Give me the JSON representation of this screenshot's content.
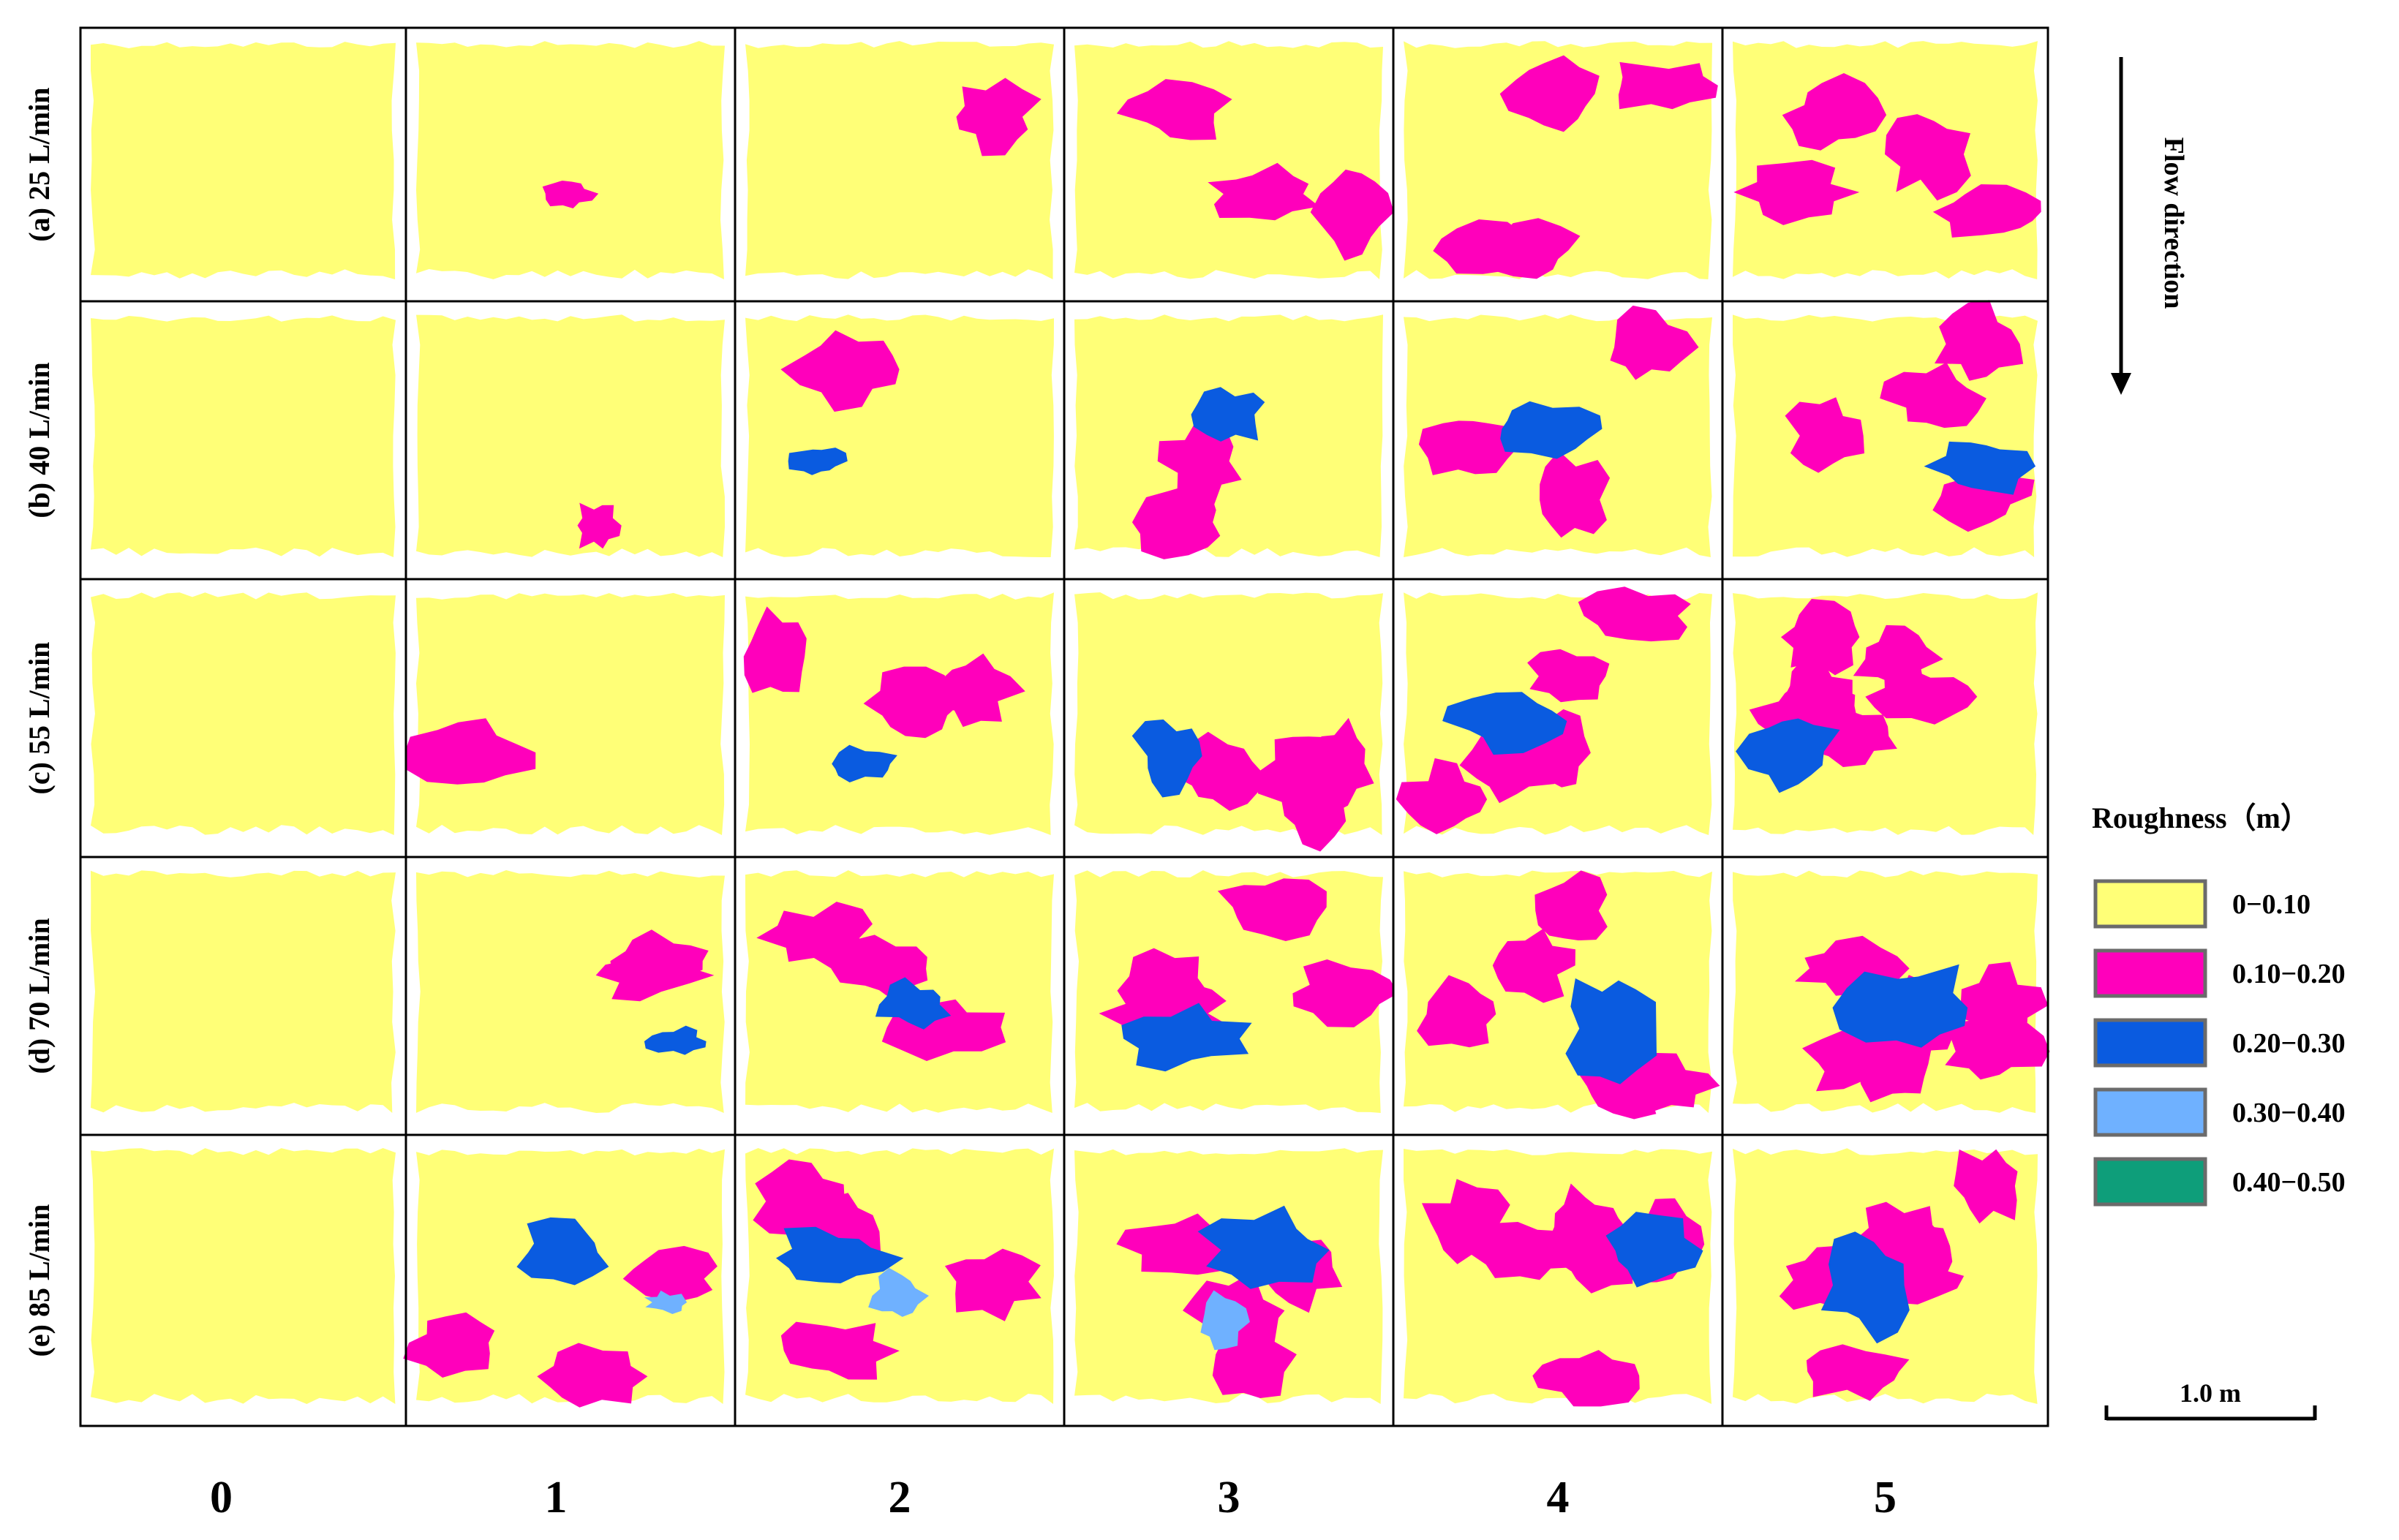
{
  "chart_data": {
    "type": "heatmap",
    "title": "",
    "rows": [
      {
        "label": "(a) 25 L/min"
      },
      {
        "label": "(b) 40 L/min"
      },
      {
        "label": "(c) 55 L/min"
      },
      {
        "label": "(d) 70 L/min"
      },
      {
        "label": "(e) 85 L/min"
      }
    ],
    "columns": [
      "0",
      "1",
      "2",
      "3",
      "4",
      "5"
    ],
    "legend": {
      "title": "Roughness（m）",
      "classes": [
        {
          "label": "0−0.10",
          "color": "#FFFF77"
        },
        {
          "label": "0.10−0.20",
          "color": "#FF00BB"
        },
        {
          "label": "0.20−0.30",
          "color": "#0A5BE0"
        },
        {
          "label": "0.30−0.40",
          "color": "#6FB1FF"
        },
        {
          "label": "0.40−0.50",
          "color": "#0E9E7A"
        }
      ]
    },
    "flow_direction_label": "Flow direction",
    "scale_bar_label": "1.0 m",
    "class_fractions_estimated": [
      [
        [
          1.0,
          0,
          0,
          0,
          0
        ],
        [
          0.98,
          0.02,
          0,
          0,
          0
        ],
        [
          0.93,
          0.07,
          0,
          0,
          0
        ],
        [
          0.78,
          0.22,
          0,
          0,
          0
        ],
        [
          0.7,
          0.3,
          0,
          0,
          0
        ],
        [
          0.68,
          0.32,
          0,
          0,
          0
        ]
      ],
      [
        [
          1.0,
          0,
          0,
          0,
          0
        ],
        [
          0.97,
          0.03,
          0,
          0,
          0
        ],
        [
          0.88,
          0.1,
          0.02,
          0,
          0
        ],
        [
          0.8,
          0.15,
          0.05,
          0,
          0
        ],
        [
          0.7,
          0.23,
          0.07,
          0,
          0
        ],
        [
          0.62,
          0.3,
          0.08,
          0,
          0
        ]
      ],
      [
        [
          1.0,
          0,
          0,
          0,
          0
        ],
        [
          0.9,
          0.1,
          0,
          0,
          0
        ],
        [
          0.75,
          0.22,
          0.03,
          0,
          0
        ],
        [
          0.63,
          0.3,
          0.07,
          0,
          0
        ],
        [
          0.55,
          0.36,
          0.09,
          0,
          0
        ],
        [
          0.5,
          0.4,
          0.1,
          0,
          0
        ]
      ],
      [
        [
          1.0,
          0,
          0,
          0,
          0
        ],
        [
          0.85,
          0.13,
          0.02,
          0,
          0
        ],
        [
          0.72,
          0.24,
          0.04,
          0,
          0
        ],
        [
          0.6,
          0.3,
          0.1,
          0,
          0
        ],
        [
          0.55,
          0.33,
          0.12,
          0,
          0
        ],
        [
          0.42,
          0.43,
          0.15,
          0,
          0
        ]
      ],
      [
        [
          1.0,
          0,
          0,
          0,
          0
        ],
        [
          0.72,
          0.2,
          0.07,
          0.01,
          0
        ],
        [
          0.58,
          0.3,
          0.09,
          0.03,
          0
        ],
        [
          0.55,
          0.3,
          0.12,
          0.03,
          0
        ],
        [
          0.5,
          0.42,
          0.08,
          0,
          0
        ],
        [
          0.48,
          0.42,
          0.1,
          0,
          0
        ]
      ]
    ]
  }
}
